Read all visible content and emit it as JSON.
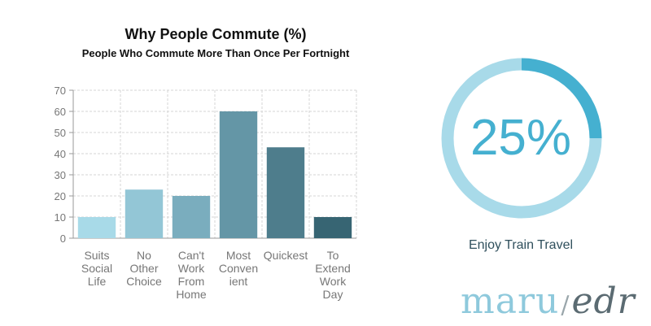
{
  "chart_data": [
    {
      "type": "bar",
      "title": "Why People Commute (%)",
      "subtitle": "People Who Commute More Than Once Per Fortnight",
      "categories": [
        [
          "Suits",
          "Social",
          "Life"
        ],
        [
          "No",
          "Other",
          "Choice"
        ],
        [
          "Can't",
          "Work",
          "From",
          "Home"
        ],
        [
          "Most",
          "Conven",
          "ient"
        ],
        [
          "Quickest"
        ],
        [
          "To",
          "Extend",
          "Work",
          "Day"
        ]
      ],
      "values": [
        10,
        23,
        20,
        60,
        43,
        10
      ],
      "colors": [
        "#a8dae8",
        "#93c6d6",
        "#7aadbe",
        "#6496a6",
        "#4e7d8c",
        "#376573"
      ],
      "ylim": [
        0,
        70
      ],
      "yticks": [
        0,
        10,
        20,
        30,
        40,
        50,
        60,
        70
      ],
      "grid": true
    },
    {
      "type": "pie",
      "style": "donut",
      "value_percent": 25,
      "value_label": "25%",
      "label": "Enjoy Train Travel",
      "colors": {
        "filled": "#45b0d0",
        "track": "#a8dae9"
      }
    }
  ],
  "logo": {
    "left": "maru",
    "slash": "/",
    "right": "edr"
  }
}
